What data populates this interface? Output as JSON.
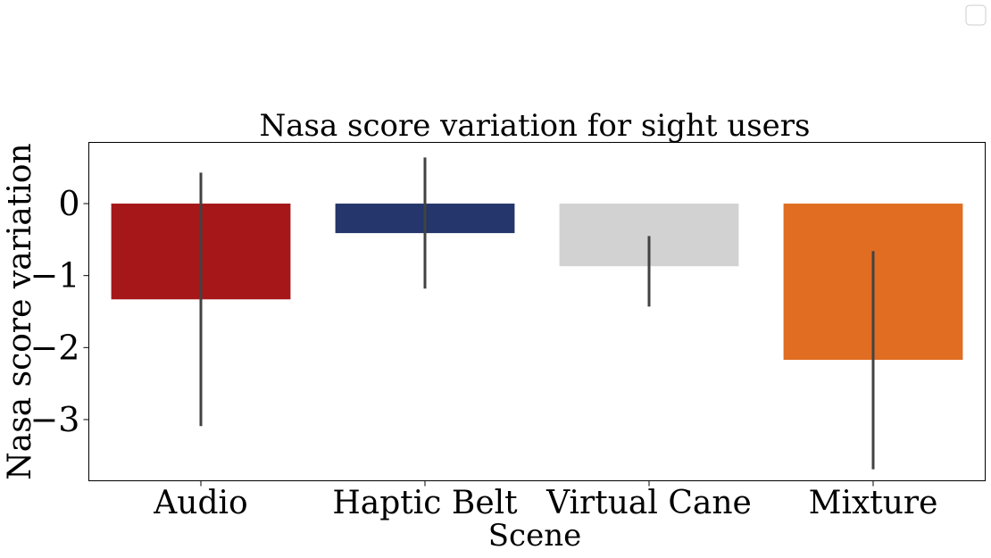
{
  "chart_data": {
    "type": "bar",
    "title": "Nasa score variation for sight users",
    "xlabel": "Scene",
    "ylabel": "Nasa score variation",
    "categories": [
      "Audio",
      "Haptic Belt",
      "Virtual Cane",
      "Mixture"
    ],
    "values": [
      -1.33,
      -0.41,
      -0.87,
      -2.17
    ],
    "error_low": [
      -3.09,
      -1.18,
      -1.43,
      -3.69
    ],
    "error_high": [
      0.43,
      0.64,
      -0.45,
      -0.66
    ],
    "colors": [
      "#a51719",
      "#24366b",
      "#d2d2d2",
      "#e06d22"
    ],
    "ylim": [
      -3.85,
      0.85
    ],
    "yticks": [
      0,
      -1,
      -2,
      -3
    ],
    "ytick_labels": [
      "0",
      "−1",
      "−2",
      "−3"
    ],
    "grid": false,
    "legend": {
      "placement": "top-right",
      "entries": []
    }
  }
}
